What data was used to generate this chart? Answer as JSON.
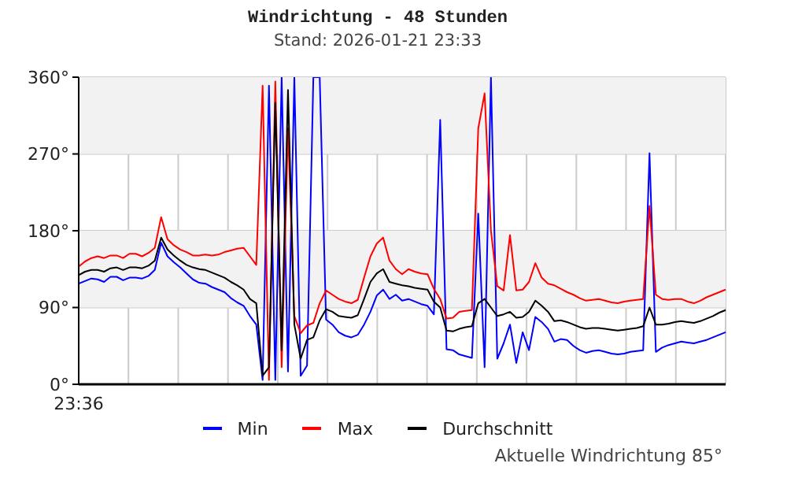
{
  "chart_data": {
    "type": "line",
    "title": "Windrichtung - 48 Stunden",
    "subtitle": "Stand: 2026-01-21 23:33",
    "annotations": [
      "Aktuelle Windrichtung 85°"
    ],
    "categories": [
      "23:36",
      null,
      null,
      null,
      null,
      null,
      null,
      null,
      null,
      null,
      null,
      null,
      null,
      null,
      null,
      null,
      null,
      null,
      null,
      null,
      null,
      null,
      null,
      null,
      null,
      null,
      null,
      null,
      null,
      null,
      null,
      null,
      null,
      null,
      null,
      null,
      null,
      null,
      null,
      null,
      null,
      null,
      null,
      null,
      null,
      null,
      null,
      null,
      null,
      null,
      null,
      null,
      null,
      null,
      null,
      null,
      null,
      null,
      null,
      null,
      null,
      null,
      null,
      null,
      null,
      null,
      null,
      null,
      null,
      null,
      null,
      null,
      null,
      null,
      null,
      null,
      null,
      null,
      null,
      null,
      null,
      null,
      null,
      null,
      null,
      null,
      null,
      null,
      null,
      null,
      null,
      null,
      null,
      null,
      null,
      null,
      null,
      null,
      null,
      null,
      null,
      null,
      null
    ],
    "series": [
      {
        "name": "Min",
        "color": "#0000ff",
        "values": [
          118,
          121,
          124,
          123,
          120,
          126,
          126,
          122,
          125,
          125,
          124,
          127,
          134,
          166,
          150,
          143,
          137,
          130,
          123,
          119,
          118,
          114,
          111,
          108,
          101,
          96,
          92,
          80,
          70,
          5,
          350,
          5,
          360,
          15,
          360,
          10,
          22,
          360,
          360,
          76,
          70,
          61,
          57,
          55,
          58,
          70,
          85,
          104,
          111,
          100,
          105,
          98,
          100,
          97,
          94,
          92,
          82,
          310,
          41,
          40,
          35,
          33,
          31,
          200,
          20,
          360,
          30,
          48,
          70,
          25,
          61,
          40,
          79,
          73,
          65,
          50,
          53,
          52,
          45,
          40,
          37,
          39,
          40,
          38,
          36,
          35,
          36,
          38,
          39,
          40,
          271,
          38,
          43,
          46,
          48,
          50,
          49,
          48,
          50,
          52,
          55,
          58,
          61
        ]
      },
      {
        "name": "Max",
        "color": "#ff0000",
        "values": [
          138,
          144,
          148,
          150,
          148,
          151,
          151,
          148,
          153,
          153,
          150,
          154,
          160,
          196,
          170,
          163,
          158,
          155,
          151,
          151,
          152,
          151,
          152,
          155,
          157,
          159,
          160,
          150,
          140,
          350,
          5,
          355,
          20,
          300,
          80,
          60,
          69,
          72,
          95,
          110,
          105,
          100,
          97,
          95,
          99,
          125,
          150,
          165,
          172,
          145,
          135,
          129,
          135,
          132,
          130,
          129,
          112,
          100,
          77,
          78,
          85,
          86,
          87,
          300,
          341,
          180,
          115,
          110,
          175,
          110,
          111,
          120,
          142,
          125,
          118,
          116,
          112,
          108,
          105,
          101,
          98,
          99,
          100,
          98,
          96,
          95,
          97,
          98,
          99,
          100,
          209,
          105,
          100,
          99,
          100,
          100,
          97,
          95,
          98,
          102,
          105,
          108,
          111
        ]
      },
      {
        "name": "Durchschnitt",
        "color": "#000000",
        "values": [
          128,
          132,
          134,
          134,
          132,
          136,
          137,
          134,
          137,
          137,
          136,
          139,
          145,
          172,
          158,
          151,
          145,
          140,
          137,
          135,
          134,
          131,
          128,
          125,
          120,
          116,
          111,
          100,
          95,
          10,
          20,
          330,
          40,
          345,
          70,
          30,
          52,
          55,
          75,
          88,
          85,
          80,
          79,
          78,
          81,
          100,
          120,
          130,
          135,
          120,
          118,
          116,
          115,
          113,
          112,
          111,
          97,
          90,
          63,
          62,
          65,
          67,
          68,
          95,
          100,
          90,
          80,
          82,
          85,
          78,
          79,
          85,
          98,
          92,
          85,
          74,
          75,
          73,
          70,
          67,
          65,
          66,
          66,
          65,
          64,
          63,
          64,
          65,
          66,
          68,
          90,
          70,
          70,
          71,
          73,
          74,
          73,
          72,
          74,
          77,
          80,
          84,
          87
        ]
      }
    ],
    "ylim": [
      0,
      360
    ],
    "yticks": [
      {
        "value": 0,
        "label": "0°"
      },
      {
        "value": 90,
        "label": "90°"
      },
      {
        "value": 180,
        "label": "180°"
      },
      {
        "value": 270,
        "label": "270°"
      },
      {
        "value": 360,
        "label": "360°"
      }
    ],
    "bands": [
      {
        "axis": "y",
        "from": 90,
        "to": 180,
        "color": "#f2f2f2"
      },
      {
        "axis": "y",
        "from": 270,
        "to": 360,
        "color": "#f2f2f2"
      }
    ],
    "grid": true,
    "legend": "bottom",
    "marker": "none",
    "line_style": "solid"
  }
}
